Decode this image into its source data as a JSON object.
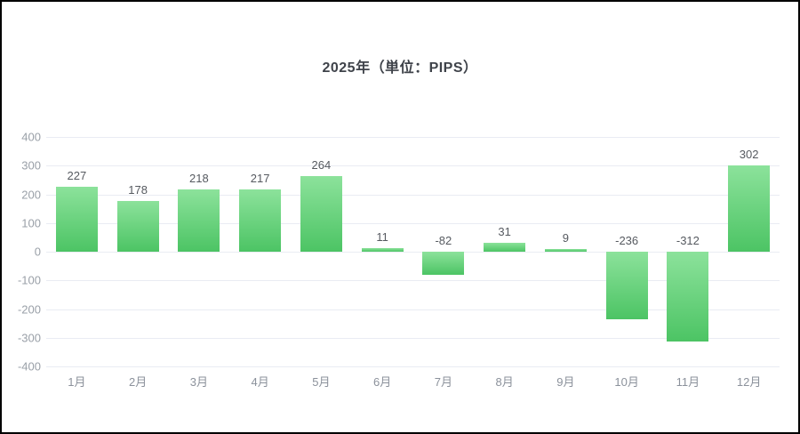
{
  "title": "2025年（単位：PIPS）",
  "colors": {
    "bar_gradient_top": "#8CE29B",
    "bar_gradient_bottom": "#4CC464",
    "gridline": "#E9ECF3",
    "y_axis_label": "#9AA0A8",
    "x_axis_label": "#8B919B",
    "value_label": "#565A60",
    "title": "#3F434A",
    "background": "#FFFFFF",
    "frame_border": "#000000"
  },
  "chart_data": {
    "type": "bar",
    "title": "2025年（単位：PIPS）",
    "unit": "PIPS",
    "categories": [
      "1月",
      "2月",
      "3月",
      "4月",
      "5月",
      "6月",
      "7月",
      "8月",
      "9月",
      "10月",
      "11月",
      "12月"
    ],
    "values": [
      227,
      178,
      218,
      217,
      264,
      11,
      -82,
      31,
      9,
      -236,
      -312,
      302
    ],
    "xlabel": "",
    "ylabel": "",
    "ylim": [
      -400,
      400
    ],
    "y_ticks": [
      400,
      300,
      200,
      100,
      0,
      -100,
      -200,
      -300,
      -400
    ],
    "grid": true,
    "legend": false,
    "data_labels": true
  }
}
